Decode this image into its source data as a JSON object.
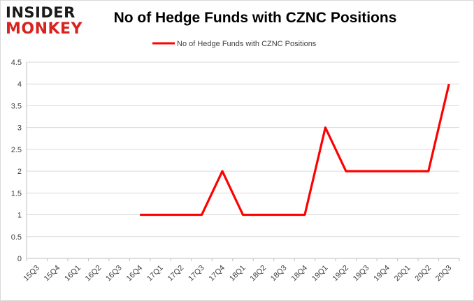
{
  "logo": {
    "line1": "INSIDER",
    "line2": "MONKEY"
  },
  "chart_data": {
    "type": "line",
    "title": "No of Hedge Funds with CZNC Positions",
    "xlabel": "",
    "ylabel": "",
    "categories": [
      "15Q3",
      "15Q4",
      "16Q1",
      "16Q2",
      "16Q3",
      "16Q4",
      "17Q1",
      "17Q2",
      "17Q3",
      "17Q4",
      "18Q1",
      "18Q2",
      "18Q3",
      "18Q4",
      "19Q1",
      "19Q2",
      "19Q3",
      "19Q4",
      "20Q1",
      "20Q2",
      "20Q3"
    ],
    "series": [
      {
        "name": "No of Hedge Funds with CZNC Positions",
        "color": "#ff0000",
        "values": [
          null,
          null,
          null,
          null,
          null,
          1,
          1,
          1,
          1,
          2,
          1,
          1,
          1,
          1,
          3,
          2,
          2,
          2,
          2,
          2,
          4
        ]
      }
    ],
    "ylim": [
      0,
      4.5
    ],
    "yticks": [
      "0",
      "0.5",
      "1",
      "1.5",
      "2",
      "2.5",
      "3",
      "3.5",
      "4",
      "4.5"
    ],
    "grid": true,
    "legend_position": "top"
  }
}
